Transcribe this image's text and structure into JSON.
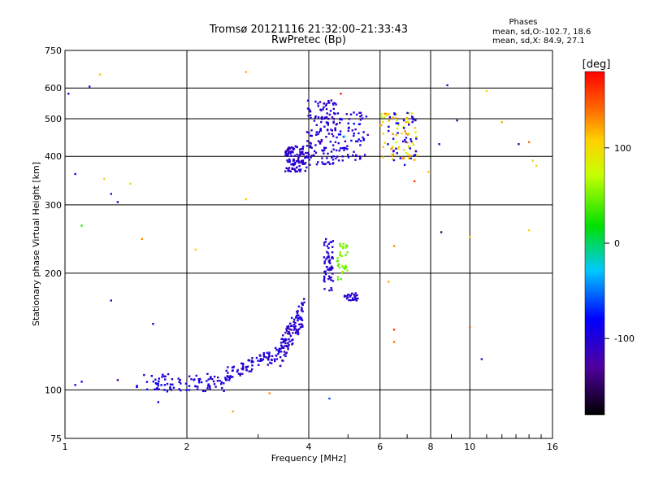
{
  "chart_data": {
    "type": "scatter",
    "title": "Tromsø 20121116 21:32:00–21:33:43",
    "subtitle": "RwPretec (Bp)",
    "xlabel": "Frequency [MHz]",
    "ylabel": "Stationary phase Virtual Height [km]",
    "x_scale": "log",
    "y_scale": "log",
    "xlim": [
      1,
      16
    ],
    "ylim": [
      75,
      750
    ],
    "x_ticks": [
      1,
      2,
      4,
      6,
      8,
      10,
      16
    ],
    "y_ticks": [
      75,
      100,
      200,
      300,
      400,
      500,
      600,
      750
    ],
    "grid": true,
    "stats": {
      "heading": "Phases",
      "line_o": "mean, sd,O:-102.7, 18.6",
      "line_x": "mean, sd,X:  84.9, 27.1"
    },
    "colorbar": {
      "label": "[deg]",
      "range": [
        -180,
        180
      ],
      "ticks": [
        100,
        0,
        -100
      ]
    },
    "clusters": [
      {
        "name": "E-trace low",
        "f": [
          1.5,
          2.5
        ],
        "h": [
          99,
          110
        ],
        "phase": [
          -115,
          -80
        ],
        "n": 90
      },
      {
        "name": "E-trace rise",
        "f": [
          2.5,
          3.4
        ],
        "h": [
          105,
          130
        ],
        "phase": [
          -120,
          -80
        ],
        "n": 90
      },
      {
        "name": "Es knee",
        "f": [
          3.4,
          3.9
        ],
        "h": [
          115,
          175
        ],
        "phase": [
          -120,
          -90
        ],
        "n": 110
      },
      {
        "name": "F1 blob",
        "f": [
          4.35,
          4.6
        ],
        "h": [
          180,
          245
        ],
        "phase": [
          -115,
          -85
        ],
        "n": 60
      },
      {
        "name": "F1 X",
        "f": [
          4.7,
          5.0
        ],
        "h": [
          190,
          240
        ],
        "phase": [
          40,
          60
        ],
        "n": 35
      },
      {
        "name": "F1 tail",
        "f": [
          4.9,
          5.3
        ],
        "h": [
          170,
          178
        ],
        "phase": [
          -115,
          -95
        ],
        "n": 25
      },
      {
        "name": "F2 spread 1",
        "f": [
          3.5,
          3.95
        ],
        "h": [
          365,
          425
        ],
        "phase": [
          -120,
          -90
        ],
        "n": 110
      },
      {
        "name": "F2 spread 2",
        "f": [
          3.95,
          4.7
        ],
        "h": [
          380,
          560
        ],
        "phase": [
          -120,
          -85
        ],
        "n": 140
      },
      {
        "name": "F2 spread 3",
        "f": [
          4.7,
          5.6
        ],
        "h": [
          390,
          520
        ],
        "phase": [
          -120,
          -80
        ],
        "n": 70
      },
      {
        "name": "F2 X",
        "f": [
          6.0,
          7.4
        ],
        "h": [
          390,
          520
        ],
        "phase": [
          60,
          140
        ],
        "n": 70
      },
      {
        "name": "F2 O far",
        "f": [
          6.2,
          7.4
        ],
        "h": [
          380,
          520
        ],
        "phase": [
          -110,
          -80
        ],
        "n": 40
      }
    ],
    "isolated_points": [
      {
        "f": 1.02,
        "h": 580,
        "phase": -100
      },
      {
        "f": 1.15,
        "h": 605,
        "phase": -110
      },
      {
        "f": 1.22,
        "h": 650,
        "phase": 110
      },
      {
        "f": 1.06,
        "h": 360,
        "phase": -100
      },
      {
        "f": 1.25,
        "h": 350,
        "phase": 110
      },
      {
        "f": 1.3,
        "h": 320,
        "phase": -110
      },
      {
        "f": 1.35,
        "h": 305,
        "phase": -100
      },
      {
        "f": 1.1,
        "h": 265,
        "phase": 30
      },
      {
        "f": 1.45,
        "h": 340,
        "phase": 100
      },
      {
        "f": 1.55,
        "h": 245,
        "phase": 130
      },
      {
        "f": 1.3,
        "h": 170,
        "phase": -110
      },
      {
        "f": 1.65,
        "h": 148,
        "phase": -110
      },
      {
        "f": 1.06,
        "h": 103,
        "phase": -100
      },
      {
        "f": 1.1,
        "h": 105,
        "phase": -100
      },
      {
        "f": 1.35,
        "h": 106,
        "phase": -130
      },
      {
        "f": 1.7,
        "h": 93,
        "phase": -90
      },
      {
        "f": 2.1,
        "h": 230,
        "phase": 110
      },
      {
        "f": 2.8,
        "h": 660,
        "phase": 120
      },
      {
        "f": 2.8,
        "h": 310,
        "phase": 110
      },
      {
        "f": 2.6,
        "h": 88,
        "phase": 120
      },
      {
        "f": 3.2,
        "h": 98,
        "phase": 130
      },
      {
        "f": 4.5,
        "h": 95,
        "phase": -60
      },
      {
        "f": 6.3,
        "h": 190,
        "phase": 120
      },
      {
        "f": 6.5,
        "h": 143,
        "phase": 160
      },
      {
        "f": 6.5,
        "h": 133,
        "phase": 140
      },
      {
        "f": 6.5,
        "h": 235,
        "phase": 130
      },
      {
        "f": 7.3,
        "h": 345,
        "phase": 160
      },
      {
        "f": 7.9,
        "h": 365,
        "phase": 110
      },
      {
        "f": 8.5,
        "h": 255,
        "phase": -140
      },
      {
        "f": 8.4,
        "h": 430,
        "phase": -110
      },
      {
        "f": 8.8,
        "h": 610,
        "phase": -110
      },
      {
        "f": 9.3,
        "h": 495,
        "phase": -110
      },
      {
        "f": 10.0,
        "h": 248,
        "phase": 110
      },
      {
        "f": 10.0,
        "h": 145,
        "phase": 150
      },
      {
        "f": 10.7,
        "h": 120,
        "phase": -110
      },
      {
        "f": 11.0,
        "h": 590,
        "phase": 100
      },
      {
        "f": 12.0,
        "h": 490,
        "phase": 120
      },
      {
        "f": 13.2,
        "h": 430,
        "phase": -110
      },
      {
        "f": 14.0,
        "h": 435,
        "phase": 140
      },
      {
        "f": 14.3,
        "h": 390,
        "phase": 110
      },
      {
        "f": 14.6,
        "h": 378,
        "phase": 100
      },
      {
        "f": 14.0,
        "h": 258,
        "phase": 100
      },
      {
        "f": 4.8,
        "h": 580,
        "phase": 170
      },
      {
        "f": 4.9,
        "h": 450,
        "phase": -30
      }
    ]
  }
}
